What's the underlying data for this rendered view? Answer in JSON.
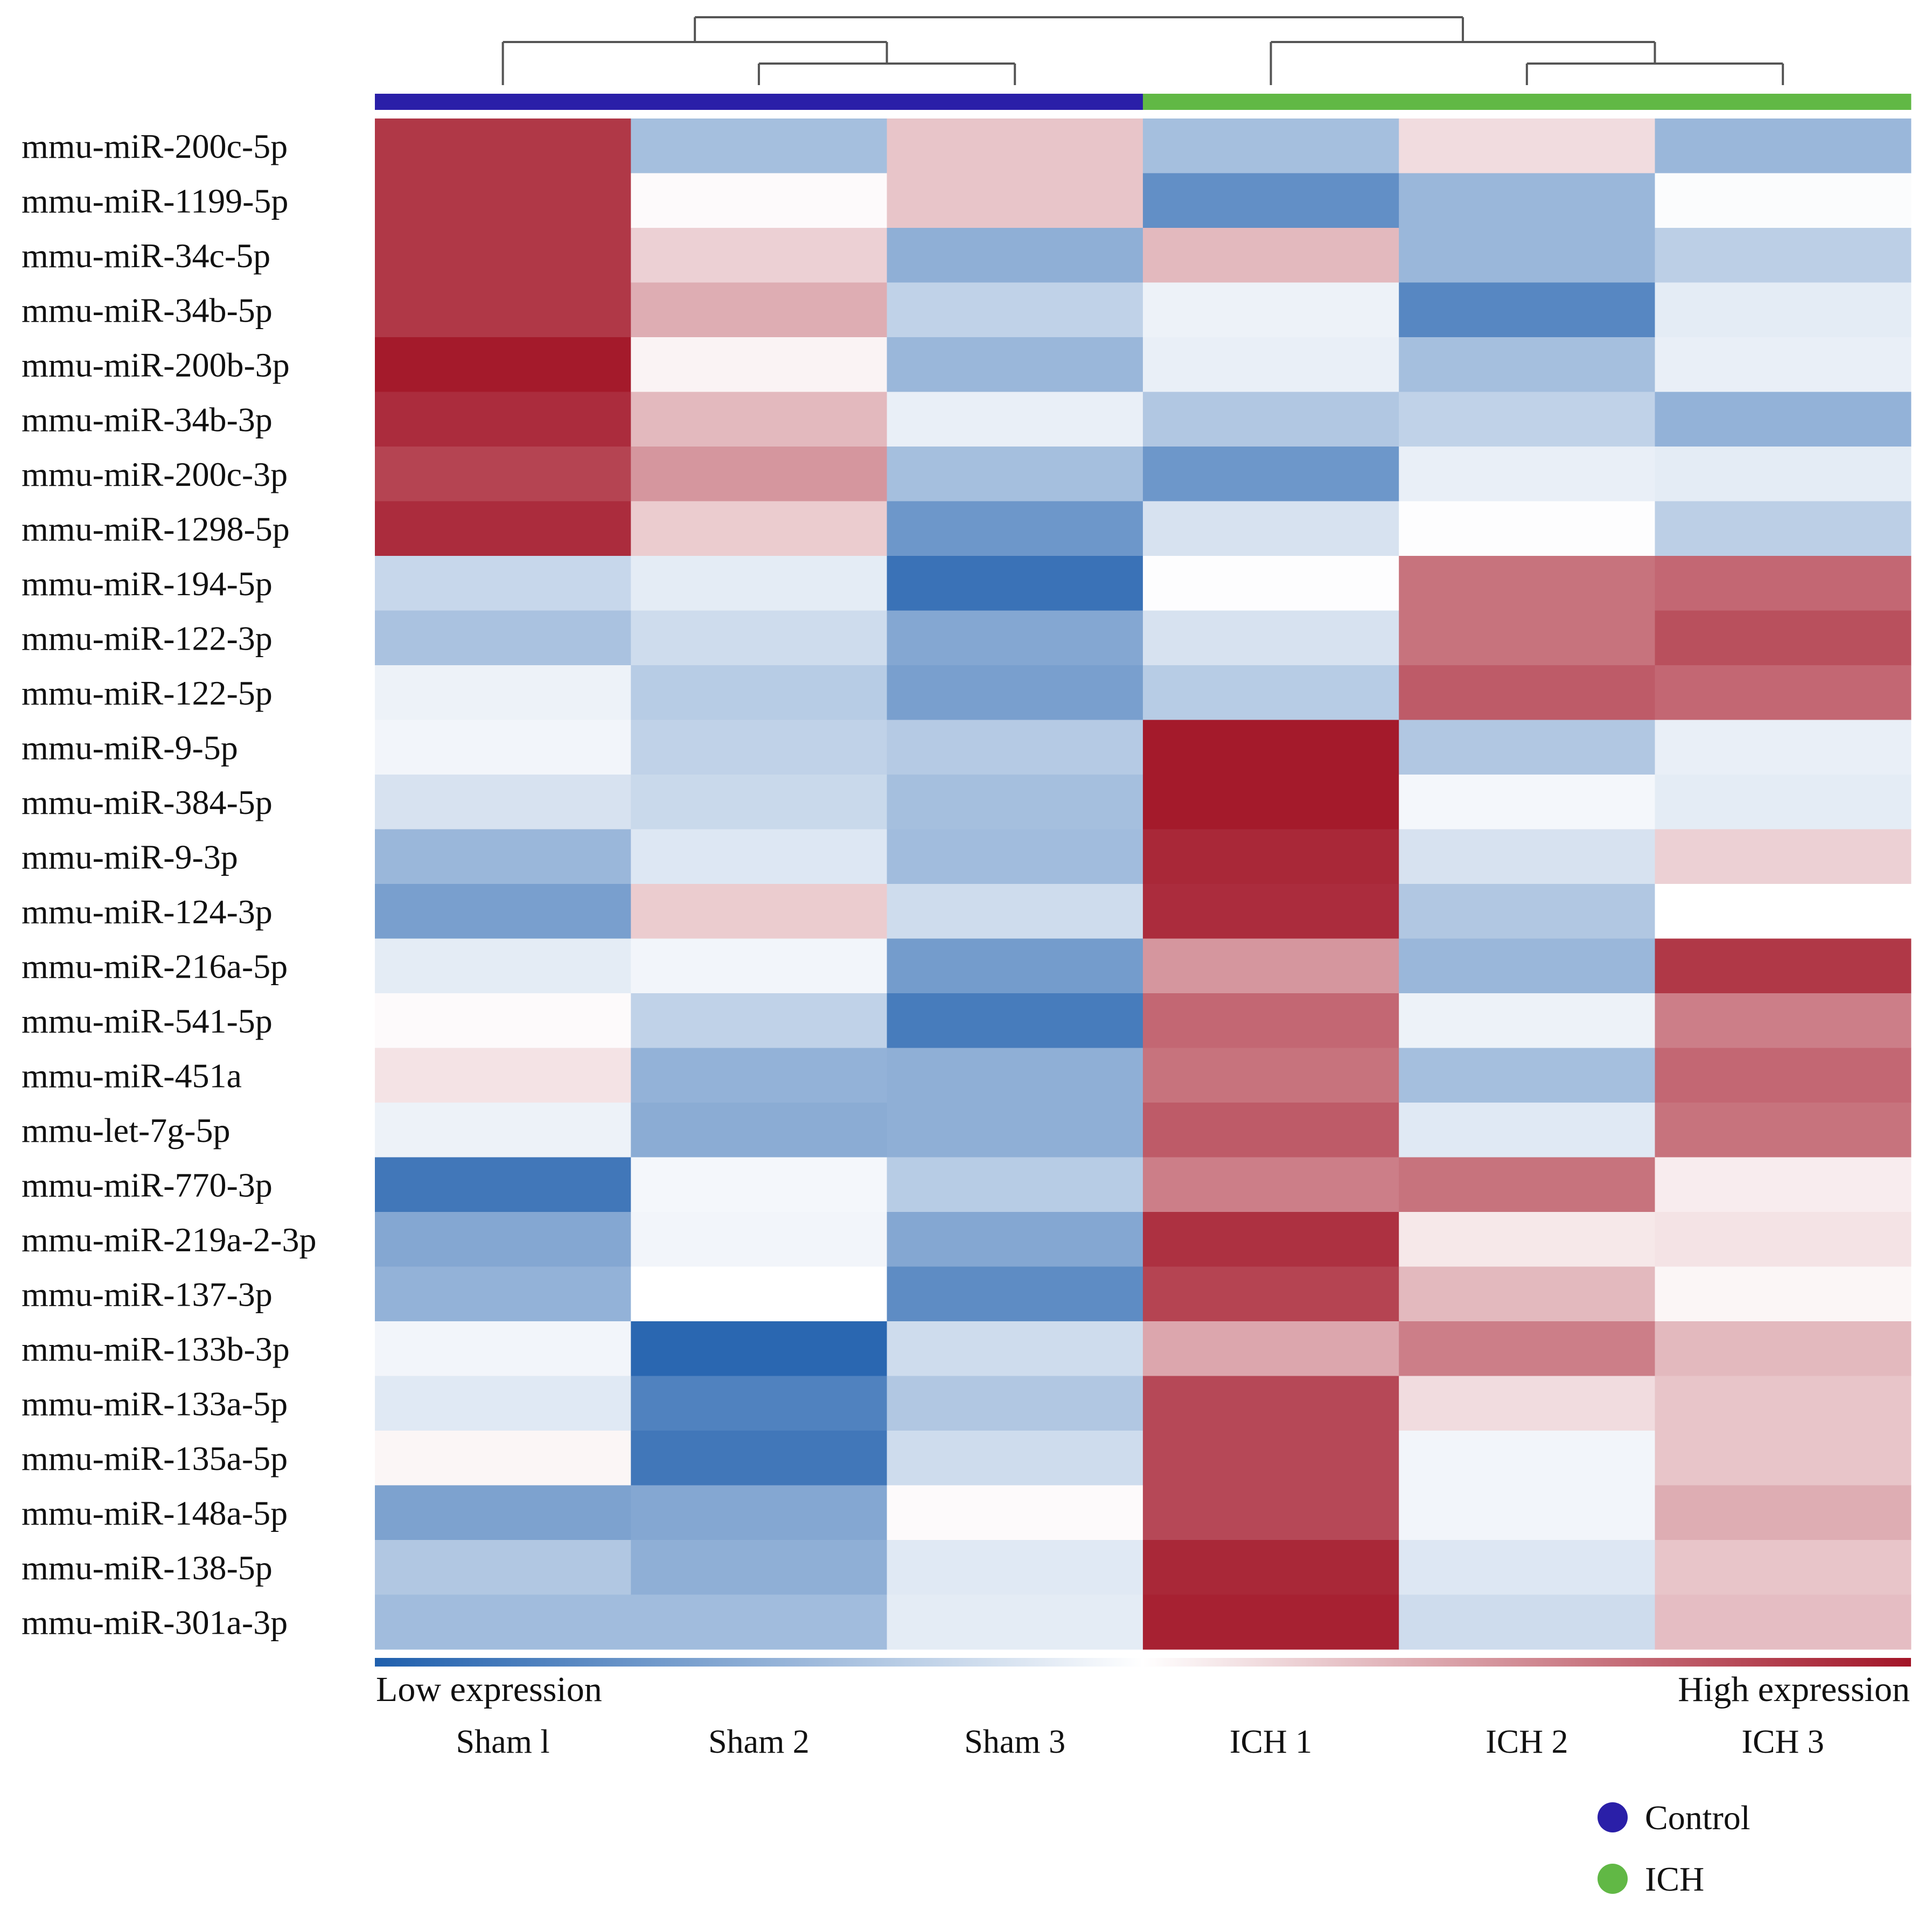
{
  "chart_data": {
    "type": "heatmap",
    "title": "",
    "rows": [
      "mmu-miR-200c-5p",
      "mmu-miR-1199-5p",
      "mmu-miR-34c-5p",
      "mmu-miR-34b-5p",
      "mmu-miR-200b-3p",
      "mmu-miR-34b-3p",
      "mmu-miR-200c-3p",
      "mmu-miR-1298-5p",
      "mmu-miR-194-5p",
      "mmu-miR-122-3p",
      "mmu-miR-122-5p",
      "mmu-miR-9-5p",
      "mmu-miR-384-5p",
      "mmu-miR-9-3p",
      "mmu-miR-124-3p",
      "mmu-miR-216a-5p",
      "mmu-miR-541-5p",
      "mmu-miR-451a",
      "mmu-let-7g-5p",
      "mmu-miR-770-3p",
      "mmu-miR-219a-2-3p",
      "mmu-miR-137-3p",
      "mmu-miR-133b-3p",
      "mmu-miR-133a-5p",
      "mmu-miR-135a-5p",
      "mmu-miR-148a-5p",
      "mmu-miR-138-5p",
      "mmu-miR-301a-3p"
    ],
    "columns": [
      "Sham l",
      "Sham 2",
      "Sham 3",
      "ICH 1",
      "ICH 2",
      "ICH 3"
    ],
    "column_groups": [
      "Control",
      "Control",
      "Control",
      "ICH",
      "ICH",
      "ICH"
    ],
    "values": [
      [
        0.85,
        -0.4,
        0.25,
        -0.4,
        0.15,
        -0.45
      ],
      [
        0.85,
        0.02,
        0.25,
        -0.7,
        -0.45,
        -0.02
      ],
      [
        0.85,
        0.2,
        -0.5,
        0.3,
        -0.45,
        -0.3
      ],
      [
        0.85,
        0.35,
        -0.28,
        -0.08,
        -0.75,
        -0.12
      ],
      [
        0.98,
        0.05,
        -0.45,
        -0.1,
        -0.4,
        -0.1
      ],
      [
        0.9,
        0.3,
        -0.1,
        -0.35,
        -0.28,
        -0.48
      ],
      [
        0.8,
        0.45,
        -0.4,
        -0.65,
        -0.1,
        -0.12
      ],
      [
        0.9,
        0.22,
        -0.65,
        -0.18,
        -0.01,
        -0.3
      ],
      [
        -0.25,
        -0.12,
        -0.88,
        -0.01,
        0.6,
        0.65
      ],
      [
        -0.38,
        -0.22,
        -0.55,
        -0.18,
        0.6,
        0.75
      ],
      [
        -0.08,
        -0.32,
        -0.6,
        -0.32,
        0.7,
        0.65
      ],
      [
        -0.06,
        -0.28,
        -0.33,
        0.98,
        -0.35,
        -0.1
      ],
      [
        -0.18,
        -0.24,
        -0.4,
        0.98,
        -0.05,
        -0.12
      ],
      [
        -0.45,
        -0.15,
        -0.42,
        0.92,
        -0.18,
        0.2
      ],
      [
        -0.6,
        0.22,
        -0.22,
        0.9,
        -0.35,
        0.0
      ],
      [
        -0.12,
        -0.06,
        -0.62,
        0.45,
        -0.45,
        0.85
      ],
      [
        0.02,
        -0.28,
        -0.82,
        0.65,
        -0.08,
        0.55
      ],
      [
        0.12,
        -0.48,
        -0.5,
        0.6,
        -0.4,
        0.65
      ],
      [
        -0.08,
        -0.52,
        -0.5,
        0.7,
        -0.14,
        0.6
      ],
      [
        -0.85,
        -0.05,
        -0.32,
        0.55,
        0.6,
        0.08
      ],
      [
        -0.55,
        -0.06,
        -0.55,
        0.88,
        0.1,
        0.12
      ],
      [
        -0.48,
        0.0,
        -0.72,
        0.8,
        0.3,
        0.04
      ],
      [
        -0.06,
        -0.95,
        -0.22,
        0.38,
        0.55,
        0.3
      ],
      [
        -0.14,
        -0.78,
        -0.35,
        0.78,
        0.15,
        0.25
      ],
      [
        0.04,
        -0.85,
        -0.22,
        0.78,
        -0.06,
        0.25
      ],
      [
        -0.58,
        -0.55,
        0.02,
        0.78,
        -0.06,
        0.35
      ],
      [
        -0.35,
        -0.5,
        -0.14,
        0.92,
        -0.15,
        0.25
      ],
      [
        -0.42,
        -0.42,
        -0.12,
        0.95,
        -0.22,
        0.28
      ]
    ],
    "value_range": [
      -1,
      1
    ],
    "colorbar_low_label": "Low expression",
    "colorbar_high_label": "High expression",
    "colors": {
      "low": "#1f5fad",
      "mid": "#ffffff",
      "high": "#a21527",
      "control": "#2a1fa8",
      "ich": "#61b845",
      "dendrogram": "#555555"
    },
    "legend": [
      {
        "label": "Control",
        "color": "#2a1fa8"
      },
      {
        "label": "ICH",
        "color": "#61b845"
      }
    ],
    "legend_position": "bottom-right",
    "dendrogram": {
      "type": "column",
      "merges": [
        [
          2,
          3
        ],
        [
          5,
          6
        ],
        [
          1,
          "2+3"
        ],
        [
          4,
          "5+6"
        ],
        [
          "1+2+3",
          "4+5+6"
        ]
      ]
    }
  }
}
